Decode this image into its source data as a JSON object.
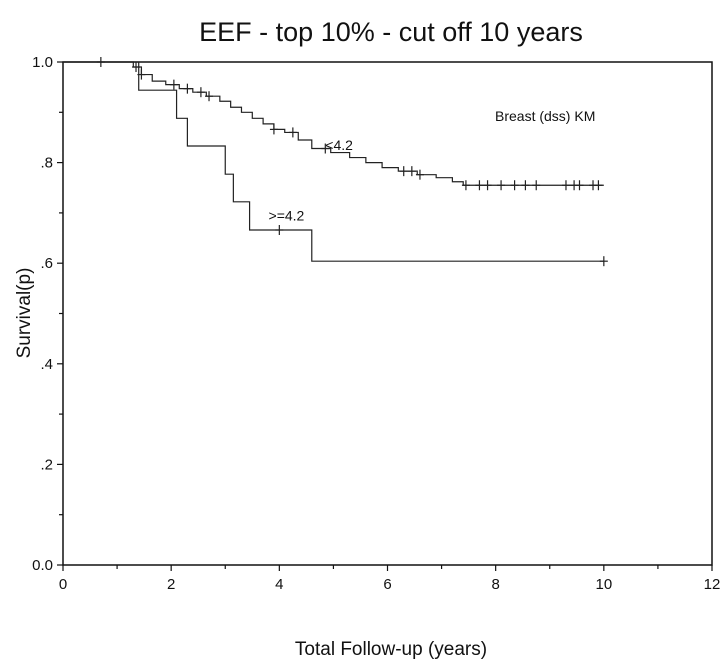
{
  "chart_data": {
    "type": "line",
    "title": "EEF - top 10% - cut off 10 years",
    "xlabel": "Total Follow-up (years)",
    "ylabel": "Survival(p)",
    "xlim": [
      0,
      12
    ],
    "ylim": [
      0,
      1
    ],
    "xticks": [
      0,
      2,
      4,
      6,
      8,
      10,
      12
    ],
    "xtick_labels": [
      "0",
      "2",
      "4",
      "6",
      "8",
      "10",
      "12"
    ],
    "yticks": [
      0,
      0.2,
      0.4,
      0.6,
      0.8,
      1.0
    ],
    "ytick_labels": [
      "0.0",
      ".2",
      ".4",
      ".6",
      ".8",
      "1.0"
    ],
    "grid": false,
    "legend_text": "Breast (dss) KM",
    "legend_position": "top-right",
    "series": [
      {
        "name": "<4.2",
        "step": [
          [
            0,
            1.0
          ],
          [
            1.3,
            0.99
          ],
          [
            1.45,
            0.975
          ],
          [
            1.65,
            0.962
          ],
          [
            1.9,
            0.955
          ],
          [
            2.15,
            0.947
          ],
          [
            2.4,
            0.94
          ],
          [
            2.65,
            0.932
          ],
          [
            2.9,
            0.922
          ],
          [
            3.1,
            0.91
          ],
          [
            3.3,
            0.9
          ],
          [
            3.5,
            0.888
          ],
          [
            3.7,
            0.877
          ],
          [
            3.9,
            0.866
          ],
          [
            4.1,
            0.86
          ],
          [
            4.35,
            0.845
          ],
          [
            4.6,
            0.828
          ],
          [
            4.95,
            0.82
          ],
          [
            5.3,
            0.81
          ],
          [
            5.6,
            0.8
          ],
          [
            5.9,
            0.79
          ],
          [
            6.2,
            0.783
          ],
          [
            6.55,
            0.776
          ],
          [
            6.9,
            0.77
          ],
          [
            7.2,
            0.762
          ],
          [
            7.4,
            0.755
          ],
          [
            10.0,
            0.755
          ]
        ],
        "censored": [
          0.7,
          1.35,
          1.45,
          2.05,
          2.3,
          2.55,
          2.7,
          3.9,
          4.25,
          4.85,
          6.3,
          6.45,
          6.6,
          7.45,
          7.7,
          7.85,
          8.1,
          8.35,
          8.55,
          8.75,
          9.3,
          9.45,
          9.55,
          9.8,
          9.9
        ],
        "label_position": [
          4.85,
          0.825
        ]
      },
      {
        "name": ">=4.2",
        "step": [
          [
            0,
            1.0
          ],
          [
            1.4,
            0.944
          ],
          [
            2.1,
            0.888
          ],
          [
            2.3,
            0.833
          ],
          [
            3.0,
            0.777
          ],
          [
            3.15,
            0.722
          ],
          [
            3.45,
            0.666
          ],
          [
            4.6,
            0.604
          ],
          [
            10.0,
            0.604
          ]
        ],
        "censored": [
          4.0,
          10.0
        ],
        "label_position": [
          3.8,
          0.685
        ]
      }
    ]
  }
}
